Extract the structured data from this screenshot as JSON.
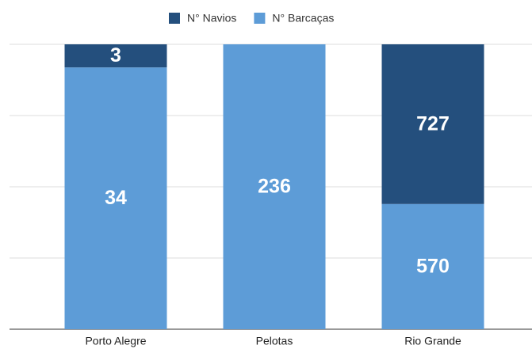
{
  "chart_data": {
    "type": "bar",
    "stacking": "percent",
    "categories": [
      "Porto Alegre",
      "Pelotas",
      "Rio Grande"
    ],
    "series": [
      {
        "name": "N° Navios",
        "color": "#244f7d",
        "values": [
          3,
          0,
          727
        ]
      },
      {
        "name": "N° Barcaças",
        "color": "#5d9cd7",
        "values": [
          34,
          236,
          570
        ]
      }
    ],
    "ylim": [
      0,
      100
    ],
    "yticks": [
      0,
      25,
      50,
      75,
      100
    ],
    "grid": true,
    "legend": "top"
  }
}
